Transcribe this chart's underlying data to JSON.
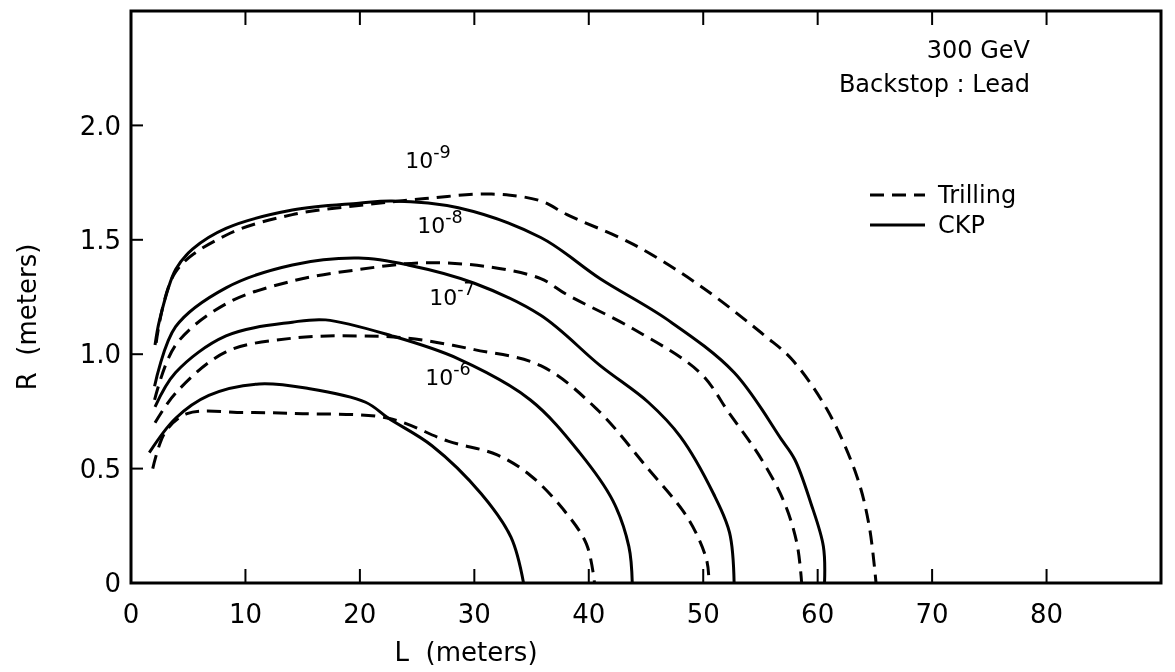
{
  "chart_data": {
    "type": "line",
    "xlabel": "L  (meters)",
    "ylabel": "R  (meters)",
    "xlim": [
      0,
      90
    ],
    "ylim": [
      0,
      2.5
    ],
    "xticks": [
      0,
      10,
      20,
      30,
      40,
      50,
      60,
      70,
      80
    ],
    "yticks": [
      0,
      0.5,
      {
        "value": 1,
        "label": "1.0"
      },
      1.5,
      {
        "value": 2,
        "label": "2.0"
      }
    ],
    "grid": false,
    "legend": "top right",
    "annotations": [
      "300 GeV",
      "Backstop : Lead",
      "10$^{-9}$",
      "10$^{-8}$",
      "10$^{-7}$",
      "10$^{-6}$"
    ],
    "series": [
      {
        "name": "Trilling",
        "color": "#000000",
        "line_style": "dashed",
        "x": [
          2.2,
          3.9,
          8.3,
          14.1,
          19.9,
          25.7,
          31.5,
          35.8,
          38.1,
          43.9,
          49.7,
          55.4,
          57.7,
          60.8,
          63.4,
          64.5,
          65.1
        ],
        "values": [
          1.05,
          1.36,
          1.52,
          1.61,
          1.65,
          1.68,
          1.7,
          1.67,
          1.61,
          1.48,
          1.3,
          1.08,
          0.98,
          0.76,
          0.47,
          0.25,
          0
        ]
      },
      {
        "name": "CKP",
        "color": "#000000",
        "line_style": "solid",
        "x": [
          2.1,
          2.5,
          3.9,
          5.4,
          8.3,
          14.1,
          19.9,
          22.8,
          28.6,
          35.8,
          41,
          46.9,
          52.7,
          56.8,
          58,
          59.4,
          60.5,
          60.6
        ],
        "values": [
          1.04,
          1.15,
          1.37,
          1.46,
          1.55,
          1.63,
          1.66,
          1.67,
          1.64,
          1.51,
          1.33,
          1.15,
          0.92,
          0.63,
          0.54,
          0.35,
          0.16,
          0
        ]
      },
      {
        "color": "#000000",
        "line_style": "dashed",
        "x": [
          2.06,
          3.9,
          8.3,
          14.1,
          19.9,
          25.7,
          31.5,
          35.8,
          38.1,
          43.9,
          49.7,
          52.3,
          55.1,
          57.1,
          58.2,
          58.6
        ],
        "values": [
          0.8,
          1.04,
          1.22,
          1.32,
          1.37,
          1.4,
          1.38,
          1.33,
          1.26,
          1.11,
          0.92,
          0.74,
          0.54,
          0.35,
          0.17,
          0
        ]
      },
      {
        "color": "#000000",
        "line_style": "solid",
        "x": [
          2.06,
          3.9,
          8.3,
          14.1,
          19.9,
          24.2,
          30,
          35.8,
          41,
          45.2,
          48,
          50.9,
          52.3,
          52.7
        ],
        "values": [
          0.86,
          1.12,
          1.29,
          1.39,
          1.42,
          1.39,
          1.31,
          1.17,
          0.95,
          0.79,
          0.64,
          0.39,
          0.22,
          0
        ]
      },
      {
        "color": "#000000",
        "line_style": "dashed",
        "x": [
          2.1,
          3.9,
          8.3,
          14.1,
          19.9,
          24.2,
          30,
          35.8,
          40.7,
          45,
          48.7,
          50.3,
          50.5
        ],
        "values": [
          0.7,
          0.83,
          1.01,
          1.07,
          1.08,
          1.07,
          1.02,
          0.95,
          0.76,
          0.51,
          0.28,
          0.1,
          0
        ]
      },
      {
        "color": "#000000",
        "line_style": "solid",
        "x": [
          2.1,
          3.9,
          8.3,
          14.1,
          17,
          22.8,
          28.6,
          34.9,
          39.2,
          42.1,
          43.5,
          43.8
        ],
        "values": [
          0.77,
          0.92,
          1.08,
          1.14,
          1.15,
          1.08,
          0.98,
          0.8,
          0.57,
          0.36,
          0.16,
          0
        ]
      },
      {
        "color": "#000000",
        "line_style": "dashed",
        "x": [
          1.9,
          3,
          4.9,
          10,
          15,
          22.5,
          27.7,
          32,
          34.9,
          37.8,
          39.8,
          40.5
        ],
        "values": [
          0.5,
          0.66,
          0.74,
          0.745,
          0.74,
          0.72,
          0.62,
          0.56,
          0.47,
          0.32,
          0.17,
          0
        ]
      },
      {
        "color": "#000000",
        "line_style": "solid",
        "x": [
          1.6,
          3.9,
          6.8,
          11.2,
          15.5,
          20.5,
          22.5,
          26.3,
          30.6,
          33.2,
          34.3
        ],
        "values": [
          0.57,
          0.72,
          0.82,
          0.87,
          0.85,
          0.79,
          0.72,
          0.6,
          0.39,
          0.2,
          0
        ]
      }
    ]
  }
}
